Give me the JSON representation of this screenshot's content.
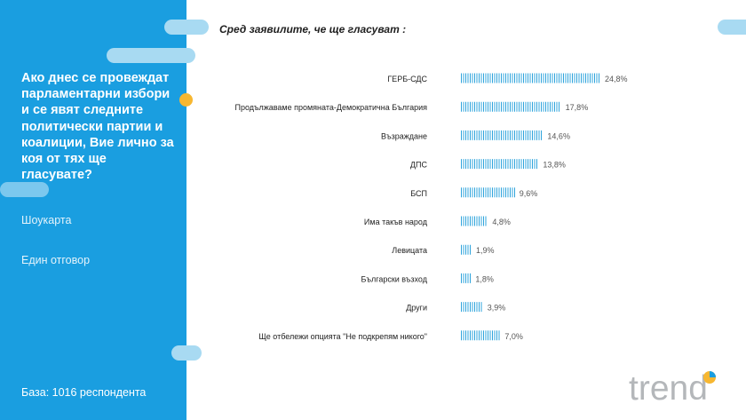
{
  "sidebar": {
    "question": "Ако днес се провеждат парламентарни избори и се явят следните политически партии и коалиции, Вие лично за коя от тях ще гласувате?",
    "meta1": "Шоукарта",
    "meta2": "Един отговор",
    "base": "База:  1016 респондента"
  },
  "header": {
    "subtitle": "Сред заявилите,  че ще гласуват :"
  },
  "logo": {
    "text": "trend",
    "icon": "trend-logo"
  },
  "colors": {
    "sidebar": "#1a9ee0",
    "bar": "#2fa4dc",
    "accent": "#f7b731",
    "pill": "#a8daf2"
  },
  "chart_data": {
    "type": "bar",
    "orientation": "horizontal",
    "categories": [
      "ГЕРБ-СДС",
      "Продължаваме промяната-Демократична България",
      "Възраждане",
      "ДПС",
      "БСП",
      "Има такъв народ",
      "Левицата",
      "Български възход",
      "Други",
      "Ще отбележи опцията \"Не подкрепям никого\""
    ],
    "values": [
      24.8,
      17.8,
      14.6,
      13.8,
      9.6,
      4.8,
      1.9,
      1.8,
      3.9,
      7.0
    ],
    "value_labels": [
      "24,8%",
      "17,8%",
      "14,6%",
      "13,8%",
      "9,6%",
      "4,8%",
      "1,9%",
      "1,8%",
      "3,9%",
      "7,0%"
    ],
    "title": "Сред заявилите,  че ще гласуват :",
    "xlim": [
      0,
      24.8
    ],
    "grid": false,
    "legend": "none"
  }
}
